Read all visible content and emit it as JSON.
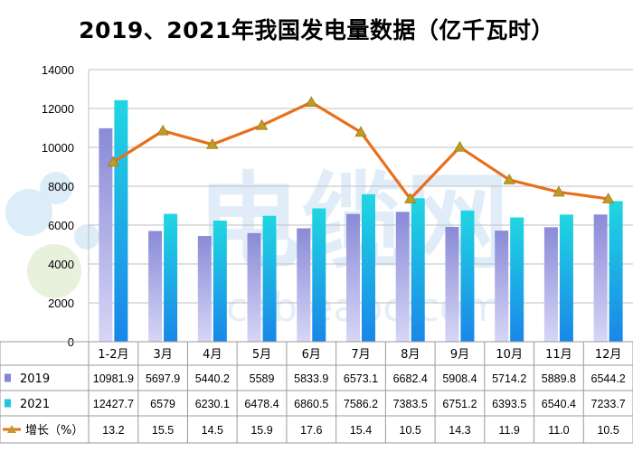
{
  "chart_data": {
    "type": "bar",
    "title": "2019、2021年我国发电量数据（亿千瓦时）",
    "categories": [
      "1-2月",
      "3月",
      "4月",
      "5月",
      "6月",
      "7月",
      "8月",
      "9月",
      "10月",
      "11月",
      "12月"
    ],
    "series": [
      {
        "name": "2019",
        "type": "bar",
        "color": "#8585d6",
        "values": [
          10981.9,
          5697.9,
          5440.2,
          5589,
          5833.9,
          6573.1,
          6682.4,
          5908.4,
          5714.2,
          5889.8,
          6544.2
        ],
        "labels": [
          "10981.9",
          "5697.9",
          "5440.2",
          "5589",
          "5833.9",
          "6573.1",
          "6682.4",
          "5908.4",
          "5714.2",
          "5889.8",
          "6544.2"
        ]
      },
      {
        "name": "2021",
        "type": "bar",
        "color": "#1ec8dc",
        "values": [
          12427.7,
          6579,
          6230.1,
          6478.4,
          6860.5,
          7586.2,
          7383.5,
          6751.2,
          6393.5,
          6540.4,
          7233.7
        ],
        "labels": [
          "12427.7",
          "6579",
          "6230.1",
          "6478.4",
          "6860.5",
          "7586.2",
          "7383.5",
          "6751.2",
          "6393.5",
          "6540.4",
          "7233.7"
        ]
      },
      {
        "name": "增长（%）",
        "type": "line",
        "color": "#e8701a",
        "values": [
          13.2,
          15.5,
          14.5,
          15.9,
          17.6,
          15.4,
          10.5,
          14.3,
          11.9,
          11.0,
          10.5
        ],
        "labels": [
          "13.2",
          "15.5",
          "14.5",
          "15.9",
          "17.6",
          "15.4",
          "10.5",
          "14.3",
          "11.9",
          "11.0",
          "10.5"
        ]
      }
    ],
    "yticks": [
      "0",
      "2000",
      "4000",
      "6000",
      "8000",
      "10000",
      "12000",
      "14000"
    ],
    "ylim": [
      0,
      14000
    ],
    "grid": true,
    "data_table": true,
    "xlabel": "",
    "ylabel": ""
  },
  "watermark": {
    "text": "电缆网",
    "url": "cableabc.com",
    "color": "#c8dff3"
  }
}
